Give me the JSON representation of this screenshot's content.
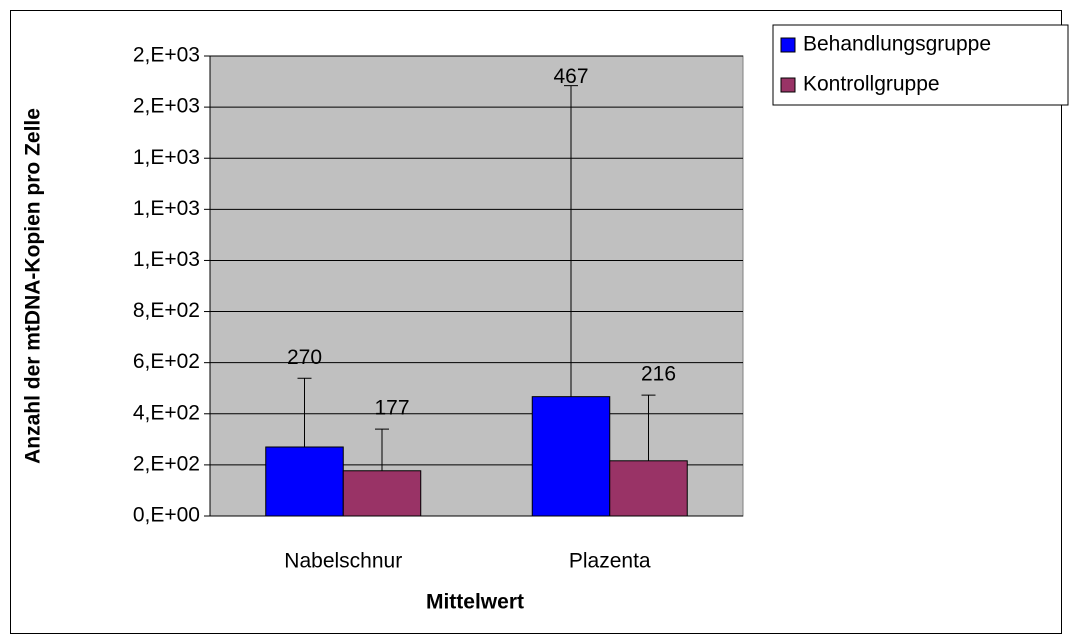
{
  "chart_data": {
    "type": "bar",
    "categories": [
      "Nabelschnur",
      "Plazenta"
    ],
    "series": [
      {
        "name": "Behandlungsgruppe",
        "color": "#0000ff",
        "values": [
          270,
          467
        ],
        "errors": [
          269,
          1217
        ]
      },
      {
        "name": "Kontrollgruppe",
        "color": "#993366",
        "values": [
          177,
          216
        ],
        "errors": [
          163,
          257
        ]
      }
    ],
    "x_label": "Mittelwert",
    "y_label": "Anzahl der mtDNA-Kopien pro Zelle",
    "ylim": [
      0,
      1800
    ],
    "yticks": [
      {
        "value": 0,
        "label": "0,E+00"
      },
      {
        "value": 200,
        "label": "2,E+02"
      },
      {
        "value": 400,
        "label": "4,E+02"
      },
      {
        "value": 600,
        "label": "6,E+02"
      },
      {
        "value": 800,
        "label": "8,E+02"
      },
      {
        "value": 1000,
        "label": "1,E+03"
      },
      {
        "value": 1200,
        "label": "1,E+03"
      },
      {
        "value": 1400,
        "label": "1,E+03"
      },
      {
        "value": 1600,
        "label": "2,E+03"
      },
      {
        "value": 1800,
        "label": "2,E+03"
      }
    ],
    "grid": true,
    "legend": "top-right",
    "plot_background": "#c0c0c0"
  }
}
